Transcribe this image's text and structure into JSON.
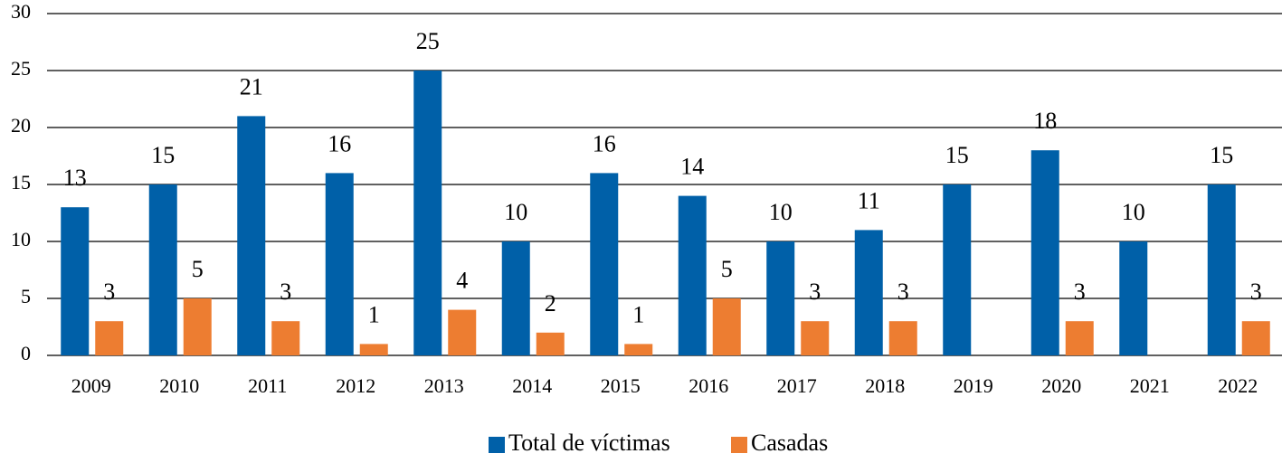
{
  "chart_data": {
    "type": "bar",
    "categories": [
      "2009",
      "2010",
      "2011",
      "2012",
      "2013",
      "2014",
      "2015",
      "2016",
      "2017",
      "2018",
      "2019",
      "2020",
      "2021",
      "2022"
    ],
    "series": [
      {
        "name": "Total de víctimas",
        "color": "#0060a8",
        "values": [
          13,
          15,
          21,
          16,
          25,
          10,
          16,
          14,
          10,
          11,
          15,
          18,
          10,
          15
        ]
      },
      {
        "name": "Casadas",
        "color": "#ed7d31",
        "values": [
          3,
          5,
          3,
          1,
          4,
          2,
          1,
          5,
          3,
          3,
          null,
          3,
          null,
          3
        ]
      }
    ],
    "ylim": [
      0,
      30
    ],
    "yticks": [
      0,
      5,
      10,
      15,
      20,
      25,
      30
    ],
    "grid": true,
    "legend": "bottom"
  }
}
